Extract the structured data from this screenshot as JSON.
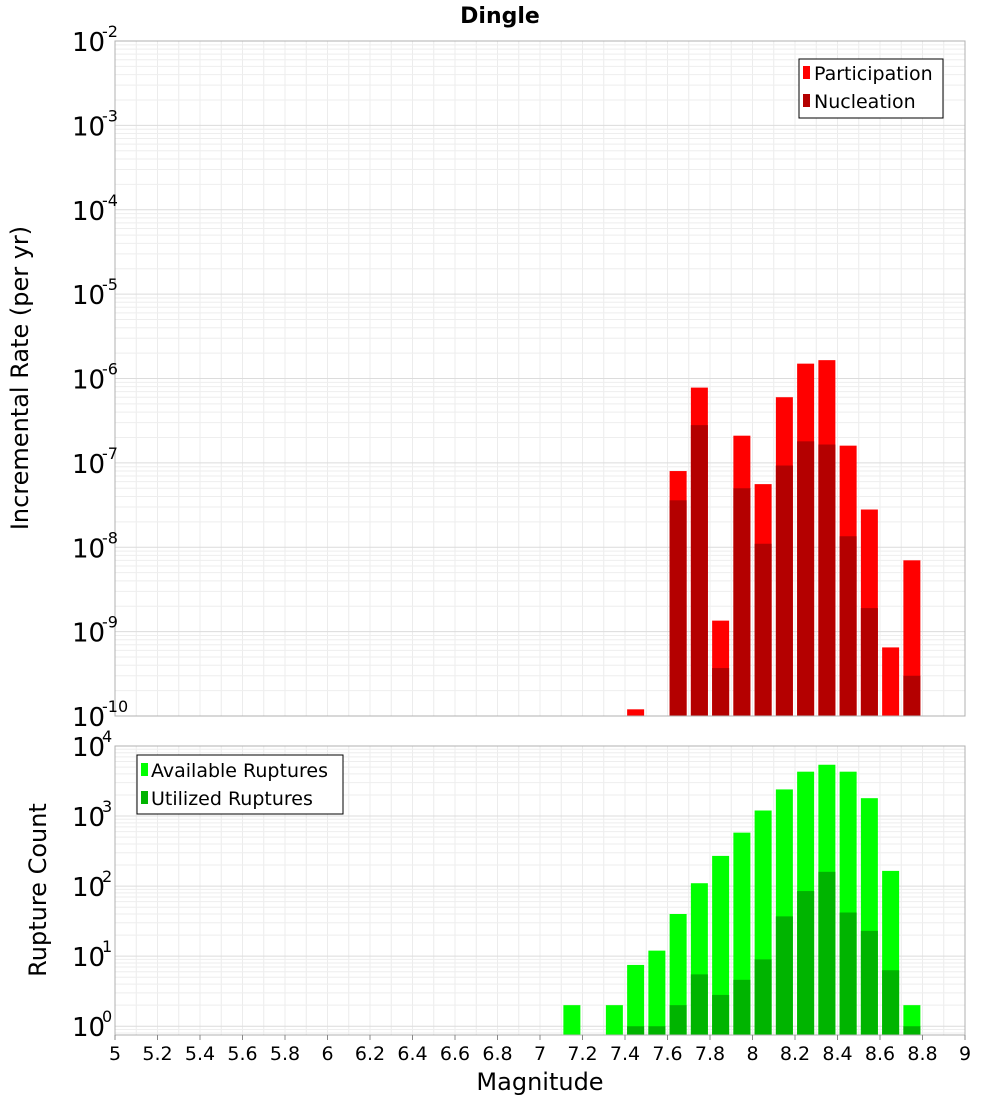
{
  "title": "Dingle",
  "chart_data": [
    {
      "type": "bar",
      "ylabel": "Incremental Rate (per yr)",
      "xlim": [
        5,
        9
      ],
      "ylim": [
        1e-10,
        0.01
      ],
      "yscale": "log",
      "ytick_exponents": [
        "-2",
        "-3",
        "-4",
        "-5",
        "-6",
        "-7",
        "-8",
        "-9",
        "-10"
      ],
      "legend_position": "top-right",
      "colors": {
        "Participation": "#ff0000",
        "Nucleation": "#b40000"
      },
      "x": [
        7.45,
        7.65,
        7.75,
        7.85,
        7.95,
        8.05,
        8.15,
        8.25,
        8.35,
        8.45,
        8.55,
        8.65,
        8.75
      ],
      "series": [
        {
          "name": "Participation",
          "values": [
            1.2e-10,
            8e-08,
            7.8e-07,
            1.35e-09,
            2.1e-07,
            5.6e-08,
            6e-07,
            1.5e-06,
            1.65e-06,
            1.6e-07,
            2.8e-08,
            6.5e-10,
            7e-09
          ]
        },
        {
          "name": "Nucleation",
          "values": [
            null,
            3.6e-08,
            2.8e-07,
            3.7e-10,
            5e-08,
            1.1e-08,
            9.3e-08,
            1.8e-07,
            1.65e-07,
            1.35e-08,
            1.9e-09,
            null,
            3e-10
          ]
        }
      ]
    },
    {
      "type": "bar",
      "xlabel": "Magnitude",
      "ylabel": "Rupture Count",
      "xlim": [
        5,
        9
      ],
      "ylim": [
        0.75,
        10000
      ],
      "yscale": "log",
      "ytick_exponents": [
        "4",
        "3",
        "2",
        "1",
        "0"
      ],
      "xticks": [
        "5",
        "5.2",
        "5.4",
        "5.6",
        "5.8",
        "6",
        "6.2",
        "6.4",
        "6.6",
        "6.8",
        "7",
        "7.2",
        "7.4",
        "7.6",
        "7.8",
        "8",
        "8.2",
        "8.4",
        "8.6",
        "8.8",
        "9"
      ],
      "legend_position": "top-left",
      "colors": {
        "Available Ruptures": "#00ff00",
        "Utilized Ruptures": "#00b400"
      },
      "x": [
        7.15,
        7.35,
        7.45,
        7.55,
        7.65,
        7.75,
        7.85,
        7.95,
        8.05,
        8.15,
        8.25,
        8.35,
        8.45,
        8.55,
        8.65,
        8.75
      ],
      "series": [
        {
          "name": "Available Ruptures",
          "values": [
            2,
            2,
            7.5,
            12,
            40,
            110,
            270,
            580,
            1200,
            2400,
            4300,
            5400,
            4300,
            1800,
            165,
            2
          ]
        },
        {
          "name": "Utilized Ruptures",
          "values": [
            null,
            null,
            1,
            1,
            2,
            5.5,
            2.8,
            4.6,
            9,
            37,
            85,
            160,
            42,
            23,
            6.3,
            1
          ]
        }
      ]
    }
  ]
}
